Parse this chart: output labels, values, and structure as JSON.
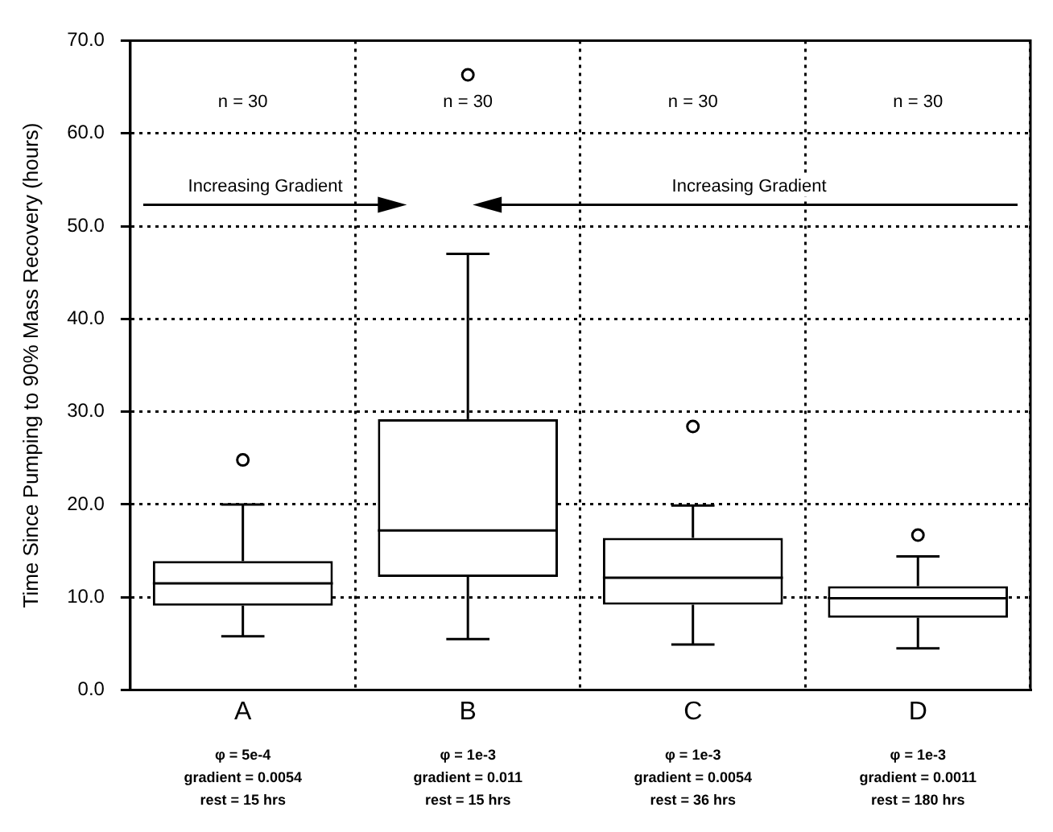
{
  "chart_data": {
    "type": "box",
    "ylabel": "Time Since Pumping to 90% Mass Recovery (hours)",
    "categories": [
      "A",
      "B",
      "C",
      "D"
    ],
    "boxes": [
      {
        "low": 5.8,
        "q1": 9.1,
        "median": 11.5,
        "q3": 13.9,
        "high": 20.0,
        "outliers": [
          24.8
        ]
      },
      {
        "low": 5.5,
        "q1": 12.2,
        "median": 17.2,
        "q3": 29.2,
        "high": 47.0,
        "outliers": [
          66.3
        ]
      },
      {
        "low": 4.9,
        "q1": 9.2,
        "median": 12.1,
        "q3": 16.4,
        "high": 19.9,
        "outliers": [
          28.4
        ]
      },
      {
        "low": 4.5,
        "q1": 7.8,
        "median": 9.9,
        "q3": 11.2,
        "high": 14.4,
        "outliers": [
          16.7
        ]
      }
    ],
    "color": "#000000",
    "ylim": [
      0,
      70
    ],
    "yticks": [
      {
        "value": 0,
        "label": "0.0"
      },
      {
        "value": 10,
        "label": "10.0"
      },
      {
        "value": 20,
        "label": "20.0"
      },
      {
        "value": 30,
        "label": "30.0"
      },
      {
        "value": 40,
        "label": "40.0"
      },
      {
        "value": 50,
        "label": "50.0"
      },
      {
        "value": 60,
        "label": "60.0"
      },
      {
        "value": 70,
        "label": "70.0"
      }
    ],
    "grid": true,
    "line_style": "dotted",
    "marker": "circle",
    "annotations": [
      "n = 30",
      "n = 30",
      "n = 30",
      "n = 30",
      "Increasing Gradient",
      "Increasing Gradient",
      "φ = 5e-4\ngradient = 0.0054\nrest = 15 hrs",
      "φ = 1e-3\ngradient = 0.011\nrest = 15 hrs",
      "φ = 1e-3\ngradient = 0.0054\nrest = 36 hrs",
      "φ = 1e-3\ngradient = 0.0011\nrest = 180 hrs"
    ]
  }
}
